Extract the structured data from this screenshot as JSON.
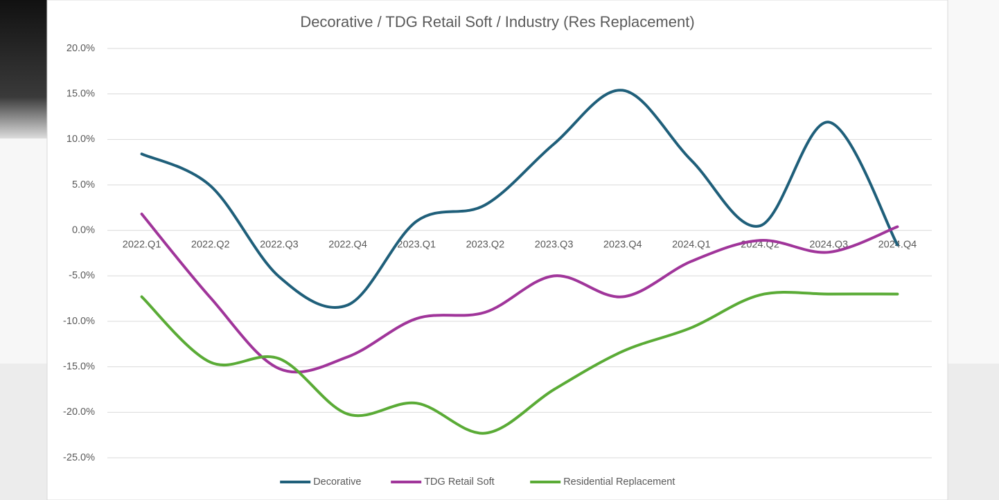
{
  "chart_data": {
    "type": "line",
    "title": "Decorative / TDG Retail Soft / Industry (Res Replacement)",
    "categories": [
      "2022.Q1",
      "2022.Q2",
      "2022.Q3",
      "2022.Q4",
      "2023.Q1",
      "2023.Q2",
      "2023.Q3",
      "2023.Q4",
      "2024.Q1",
      "2024.Q2",
      "2024.Q3",
      "2024.Q4"
    ],
    "series": [
      {
        "name": "Decorative",
        "color": "#1f5f7a",
        "values": [
          8.4,
          4.9,
          -5.1,
          -8.2,
          1.0,
          2.8,
          9.5,
          15.4,
          7.7,
          0.5,
          11.9,
          -1.6
        ]
      },
      {
        "name": "TDG Retail Soft",
        "color": "#a0359a",
        "values": [
          1.8,
          -7.4,
          -15.2,
          -13.9,
          -9.7,
          -9.0,
          -5.0,
          -7.3,
          -3.4,
          -1.1,
          -2.4,
          0.4
        ]
      },
      {
        "name": "Residential Replacement",
        "color": "#5aab36",
        "values": [
          -7.3,
          -14.5,
          -14.1,
          -20.2,
          -19.0,
          -22.3,
          -17.5,
          -13.3,
          -10.7,
          -7.1,
          -7.0,
          -7.0
        ]
      }
    ],
    "ylim": [
      -25,
      20
    ],
    "yticks": [
      {
        "value": -25,
        "label": "-25.0%"
      },
      {
        "value": -20,
        "label": "-20.0%"
      },
      {
        "value": -15,
        "label": "-15.0%"
      },
      {
        "value": -10,
        "label": "-10.0%"
      },
      {
        "value": -5,
        "label": "-5.0%"
      },
      {
        "value": 0,
        "label": "0.0%"
      },
      {
        "value": 5,
        "label": "5.0%"
      },
      {
        "value": 10,
        "label": "10.0%"
      },
      {
        "value": 15,
        "label": "15.0%"
      },
      {
        "value": 20,
        "label": "20.0%"
      }
    ],
    "grid": true,
    "smooth": true,
    "legend": "bottom"
  }
}
